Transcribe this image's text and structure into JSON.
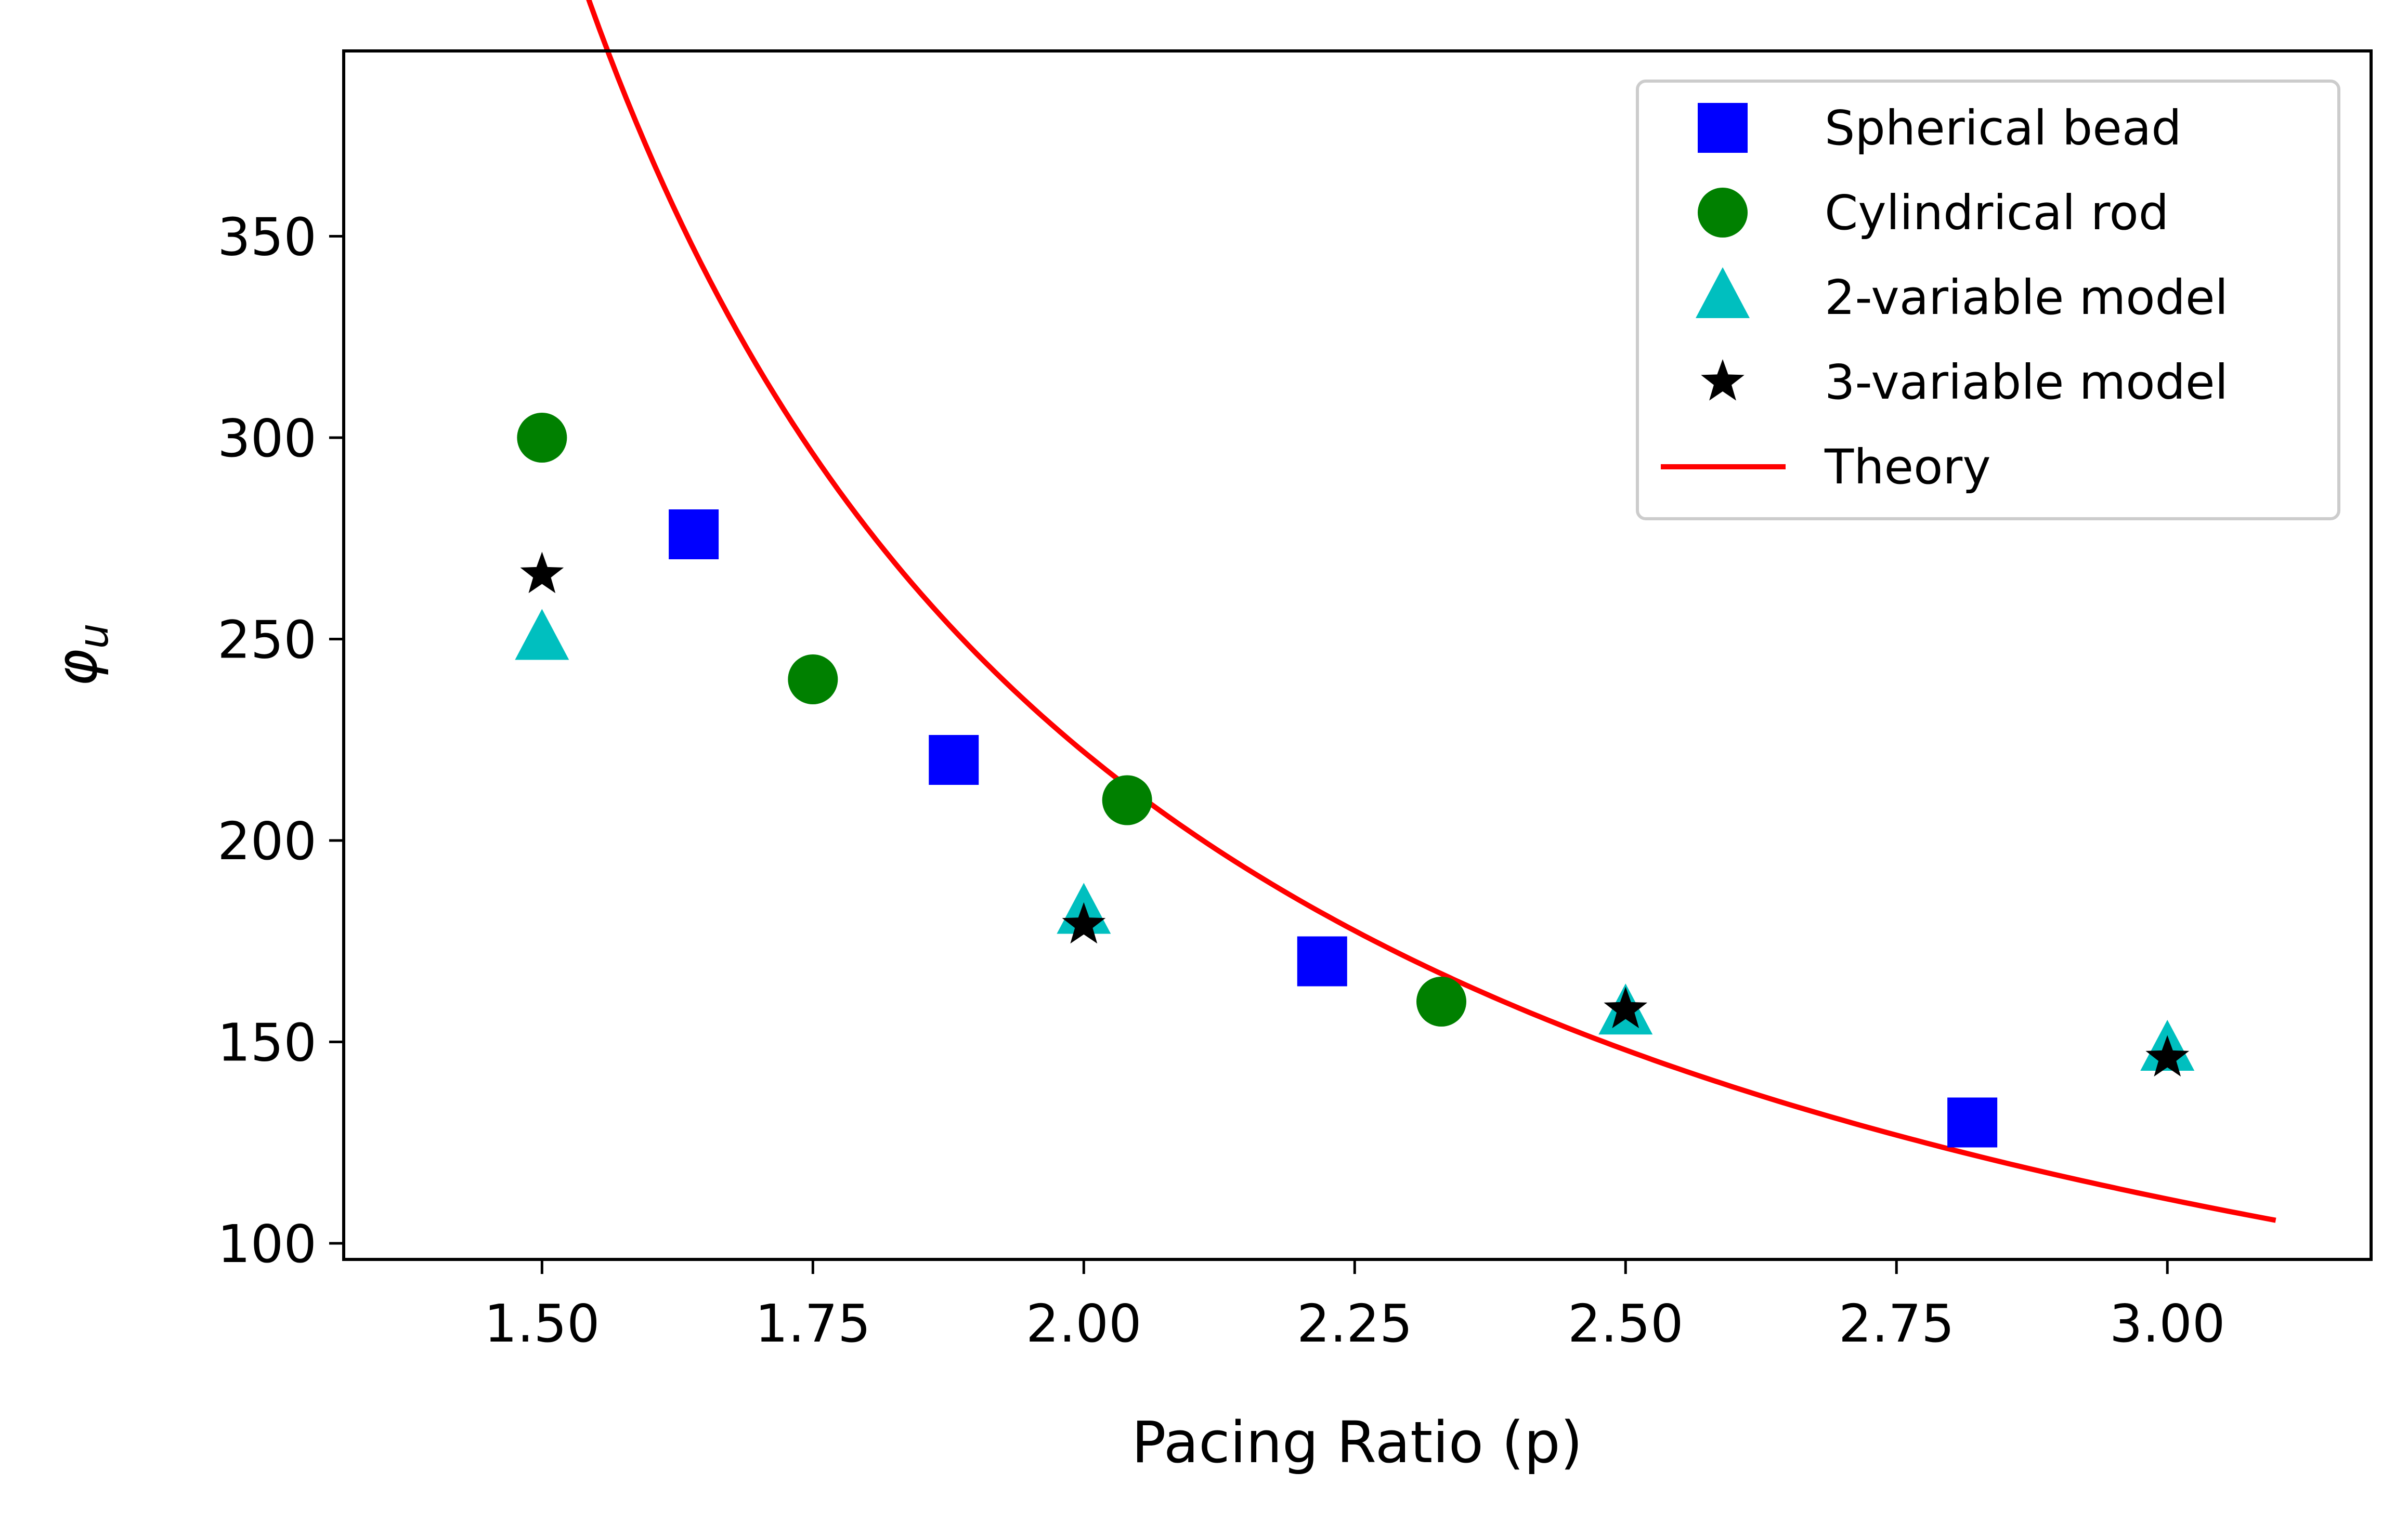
{
  "chart_data": {
    "type": "scatter",
    "xlabel": "Pacing Ratio (p)",
    "ylabel": "φu",
    "ylabel_main": "φ",
    "ylabel_sub": "u",
    "xlim": [
      1.317,
      3.188
    ],
    "ylim": [
      96,
      396
    ],
    "x_ticks": [
      1.5,
      1.75,
      2.0,
      2.25,
      2.5,
      2.75,
      3.0
    ],
    "x_tick_labels": [
      "1.50",
      "1.75",
      "2.00",
      "2.25",
      "2.50",
      "2.75",
      "3.00"
    ],
    "y_ticks": [
      100,
      150,
      200,
      250,
      300,
      350
    ],
    "y_tick_labels": [
      "100",
      "150",
      "200",
      "250",
      "300",
      "350"
    ],
    "grid": false,
    "legend_position": "top-right",
    "series": [
      {
        "name": "Spherical bead",
        "marker": "square",
        "color": "#0000ff",
        "points": [
          {
            "x": 1.64,
            "y": 276
          },
          {
            "x": 1.88,
            "y": 220
          },
          {
            "x": 2.22,
            "y": 170
          },
          {
            "x": 2.82,
            "y": 130
          }
        ]
      },
      {
        "name": "Cylindrical rod",
        "marker": "circle",
        "color": "#008000",
        "points": [
          {
            "x": 1.5,
            "y": 300
          },
          {
            "x": 1.75,
            "y": 240
          },
          {
            "x": 2.04,
            "y": 210
          },
          {
            "x": 2.33,
            "y": 160
          }
        ]
      },
      {
        "name": "2-variable model",
        "marker": "triangle",
        "color": "#00bfbf",
        "points": [
          {
            "x": 1.5,
            "y": 250
          },
          {
            "x": 2.0,
            "y": 182
          },
          {
            "x": 2.5,
            "y": 157
          },
          {
            "x": 3.0,
            "y": 148
          }
        ]
      },
      {
        "name": "3-variable model",
        "marker": "star",
        "color": "#000000",
        "points": [
          {
            "x": 1.5,
            "y": 266
          },
          {
            "x": 2.0,
            "y": 179
          },
          {
            "x": 2.5,
            "y": 158
          },
          {
            "x": 3.0,
            "y": 146
          }
        ]
      },
      {
        "name": "Theory",
        "marker": "line",
        "color": "#ff0000",
        "function": "a / (x - 1)",
        "a": 222,
        "x_range": [
          1.4,
          3.1
        ]
      }
    ]
  }
}
